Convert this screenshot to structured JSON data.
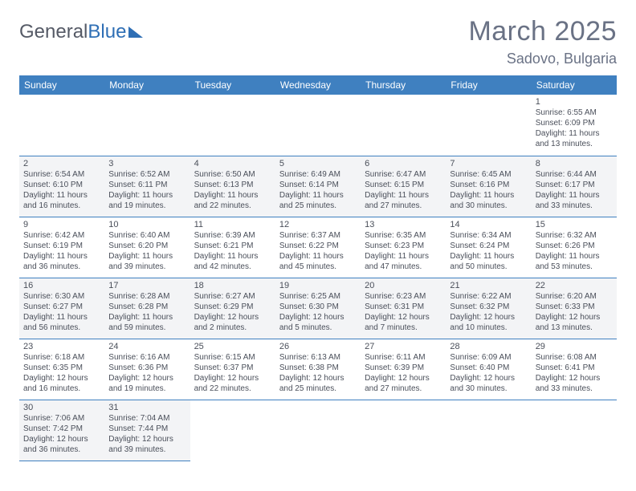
{
  "logo": {
    "text1": "General",
    "text2": "Blue",
    "accent_color": "#2f6fb5",
    "text_color": "#555a66"
  },
  "header": {
    "month_title": "March 2025",
    "location": "Sadovo, Bulgaria"
  },
  "calendar": {
    "header_bg": "#3f80c0",
    "header_fg": "#ffffff",
    "row_alt_bg": "#f3f4f6",
    "border_color": "#3f80c0",
    "day_names": [
      "Sunday",
      "Monday",
      "Tuesday",
      "Wednesday",
      "Thursday",
      "Friday",
      "Saturday"
    ],
    "weeks": [
      [
        null,
        null,
        null,
        null,
        null,
        null,
        {
          "n": "1",
          "sr": "Sunrise: 6:55 AM",
          "ss": "Sunset: 6:09 PM",
          "dl": "Daylight: 11 hours and 13 minutes."
        }
      ],
      [
        {
          "n": "2",
          "sr": "Sunrise: 6:54 AM",
          "ss": "Sunset: 6:10 PM",
          "dl": "Daylight: 11 hours and 16 minutes."
        },
        {
          "n": "3",
          "sr": "Sunrise: 6:52 AM",
          "ss": "Sunset: 6:11 PM",
          "dl": "Daylight: 11 hours and 19 minutes."
        },
        {
          "n": "4",
          "sr": "Sunrise: 6:50 AM",
          "ss": "Sunset: 6:13 PM",
          "dl": "Daylight: 11 hours and 22 minutes."
        },
        {
          "n": "5",
          "sr": "Sunrise: 6:49 AM",
          "ss": "Sunset: 6:14 PM",
          "dl": "Daylight: 11 hours and 25 minutes."
        },
        {
          "n": "6",
          "sr": "Sunrise: 6:47 AM",
          "ss": "Sunset: 6:15 PM",
          "dl": "Daylight: 11 hours and 27 minutes."
        },
        {
          "n": "7",
          "sr": "Sunrise: 6:45 AM",
          "ss": "Sunset: 6:16 PM",
          "dl": "Daylight: 11 hours and 30 minutes."
        },
        {
          "n": "8",
          "sr": "Sunrise: 6:44 AM",
          "ss": "Sunset: 6:17 PM",
          "dl": "Daylight: 11 hours and 33 minutes."
        }
      ],
      [
        {
          "n": "9",
          "sr": "Sunrise: 6:42 AM",
          "ss": "Sunset: 6:19 PM",
          "dl": "Daylight: 11 hours and 36 minutes."
        },
        {
          "n": "10",
          "sr": "Sunrise: 6:40 AM",
          "ss": "Sunset: 6:20 PM",
          "dl": "Daylight: 11 hours and 39 minutes."
        },
        {
          "n": "11",
          "sr": "Sunrise: 6:39 AM",
          "ss": "Sunset: 6:21 PM",
          "dl": "Daylight: 11 hours and 42 minutes."
        },
        {
          "n": "12",
          "sr": "Sunrise: 6:37 AM",
          "ss": "Sunset: 6:22 PM",
          "dl": "Daylight: 11 hours and 45 minutes."
        },
        {
          "n": "13",
          "sr": "Sunrise: 6:35 AM",
          "ss": "Sunset: 6:23 PM",
          "dl": "Daylight: 11 hours and 47 minutes."
        },
        {
          "n": "14",
          "sr": "Sunrise: 6:34 AM",
          "ss": "Sunset: 6:24 PM",
          "dl": "Daylight: 11 hours and 50 minutes."
        },
        {
          "n": "15",
          "sr": "Sunrise: 6:32 AM",
          "ss": "Sunset: 6:26 PM",
          "dl": "Daylight: 11 hours and 53 minutes."
        }
      ],
      [
        {
          "n": "16",
          "sr": "Sunrise: 6:30 AM",
          "ss": "Sunset: 6:27 PM",
          "dl": "Daylight: 11 hours and 56 minutes."
        },
        {
          "n": "17",
          "sr": "Sunrise: 6:28 AM",
          "ss": "Sunset: 6:28 PM",
          "dl": "Daylight: 11 hours and 59 minutes."
        },
        {
          "n": "18",
          "sr": "Sunrise: 6:27 AM",
          "ss": "Sunset: 6:29 PM",
          "dl": "Daylight: 12 hours and 2 minutes."
        },
        {
          "n": "19",
          "sr": "Sunrise: 6:25 AM",
          "ss": "Sunset: 6:30 PM",
          "dl": "Daylight: 12 hours and 5 minutes."
        },
        {
          "n": "20",
          "sr": "Sunrise: 6:23 AM",
          "ss": "Sunset: 6:31 PM",
          "dl": "Daylight: 12 hours and 7 minutes."
        },
        {
          "n": "21",
          "sr": "Sunrise: 6:22 AM",
          "ss": "Sunset: 6:32 PM",
          "dl": "Daylight: 12 hours and 10 minutes."
        },
        {
          "n": "22",
          "sr": "Sunrise: 6:20 AM",
          "ss": "Sunset: 6:33 PM",
          "dl": "Daylight: 12 hours and 13 minutes."
        }
      ],
      [
        {
          "n": "23",
          "sr": "Sunrise: 6:18 AM",
          "ss": "Sunset: 6:35 PM",
          "dl": "Daylight: 12 hours and 16 minutes."
        },
        {
          "n": "24",
          "sr": "Sunrise: 6:16 AM",
          "ss": "Sunset: 6:36 PM",
          "dl": "Daylight: 12 hours and 19 minutes."
        },
        {
          "n": "25",
          "sr": "Sunrise: 6:15 AM",
          "ss": "Sunset: 6:37 PM",
          "dl": "Daylight: 12 hours and 22 minutes."
        },
        {
          "n": "26",
          "sr": "Sunrise: 6:13 AM",
          "ss": "Sunset: 6:38 PM",
          "dl": "Daylight: 12 hours and 25 minutes."
        },
        {
          "n": "27",
          "sr": "Sunrise: 6:11 AM",
          "ss": "Sunset: 6:39 PM",
          "dl": "Daylight: 12 hours and 27 minutes."
        },
        {
          "n": "28",
          "sr": "Sunrise: 6:09 AM",
          "ss": "Sunset: 6:40 PM",
          "dl": "Daylight: 12 hours and 30 minutes."
        },
        {
          "n": "29",
          "sr": "Sunrise: 6:08 AM",
          "ss": "Sunset: 6:41 PM",
          "dl": "Daylight: 12 hours and 33 minutes."
        }
      ],
      [
        {
          "n": "30",
          "sr": "Sunrise: 7:06 AM",
          "ss": "Sunset: 7:42 PM",
          "dl": "Daylight: 12 hours and 36 minutes."
        },
        {
          "n": "31",
          "sr": "Sunrise: 7:04 AM",
          "ss": "Sunset: 7:44 PM",
          "dl": "Daylight: 12 hours and 39 minutes."
        },
        null,
        null,
        null,
        null,
        null
      ]
    ]
  }
}
